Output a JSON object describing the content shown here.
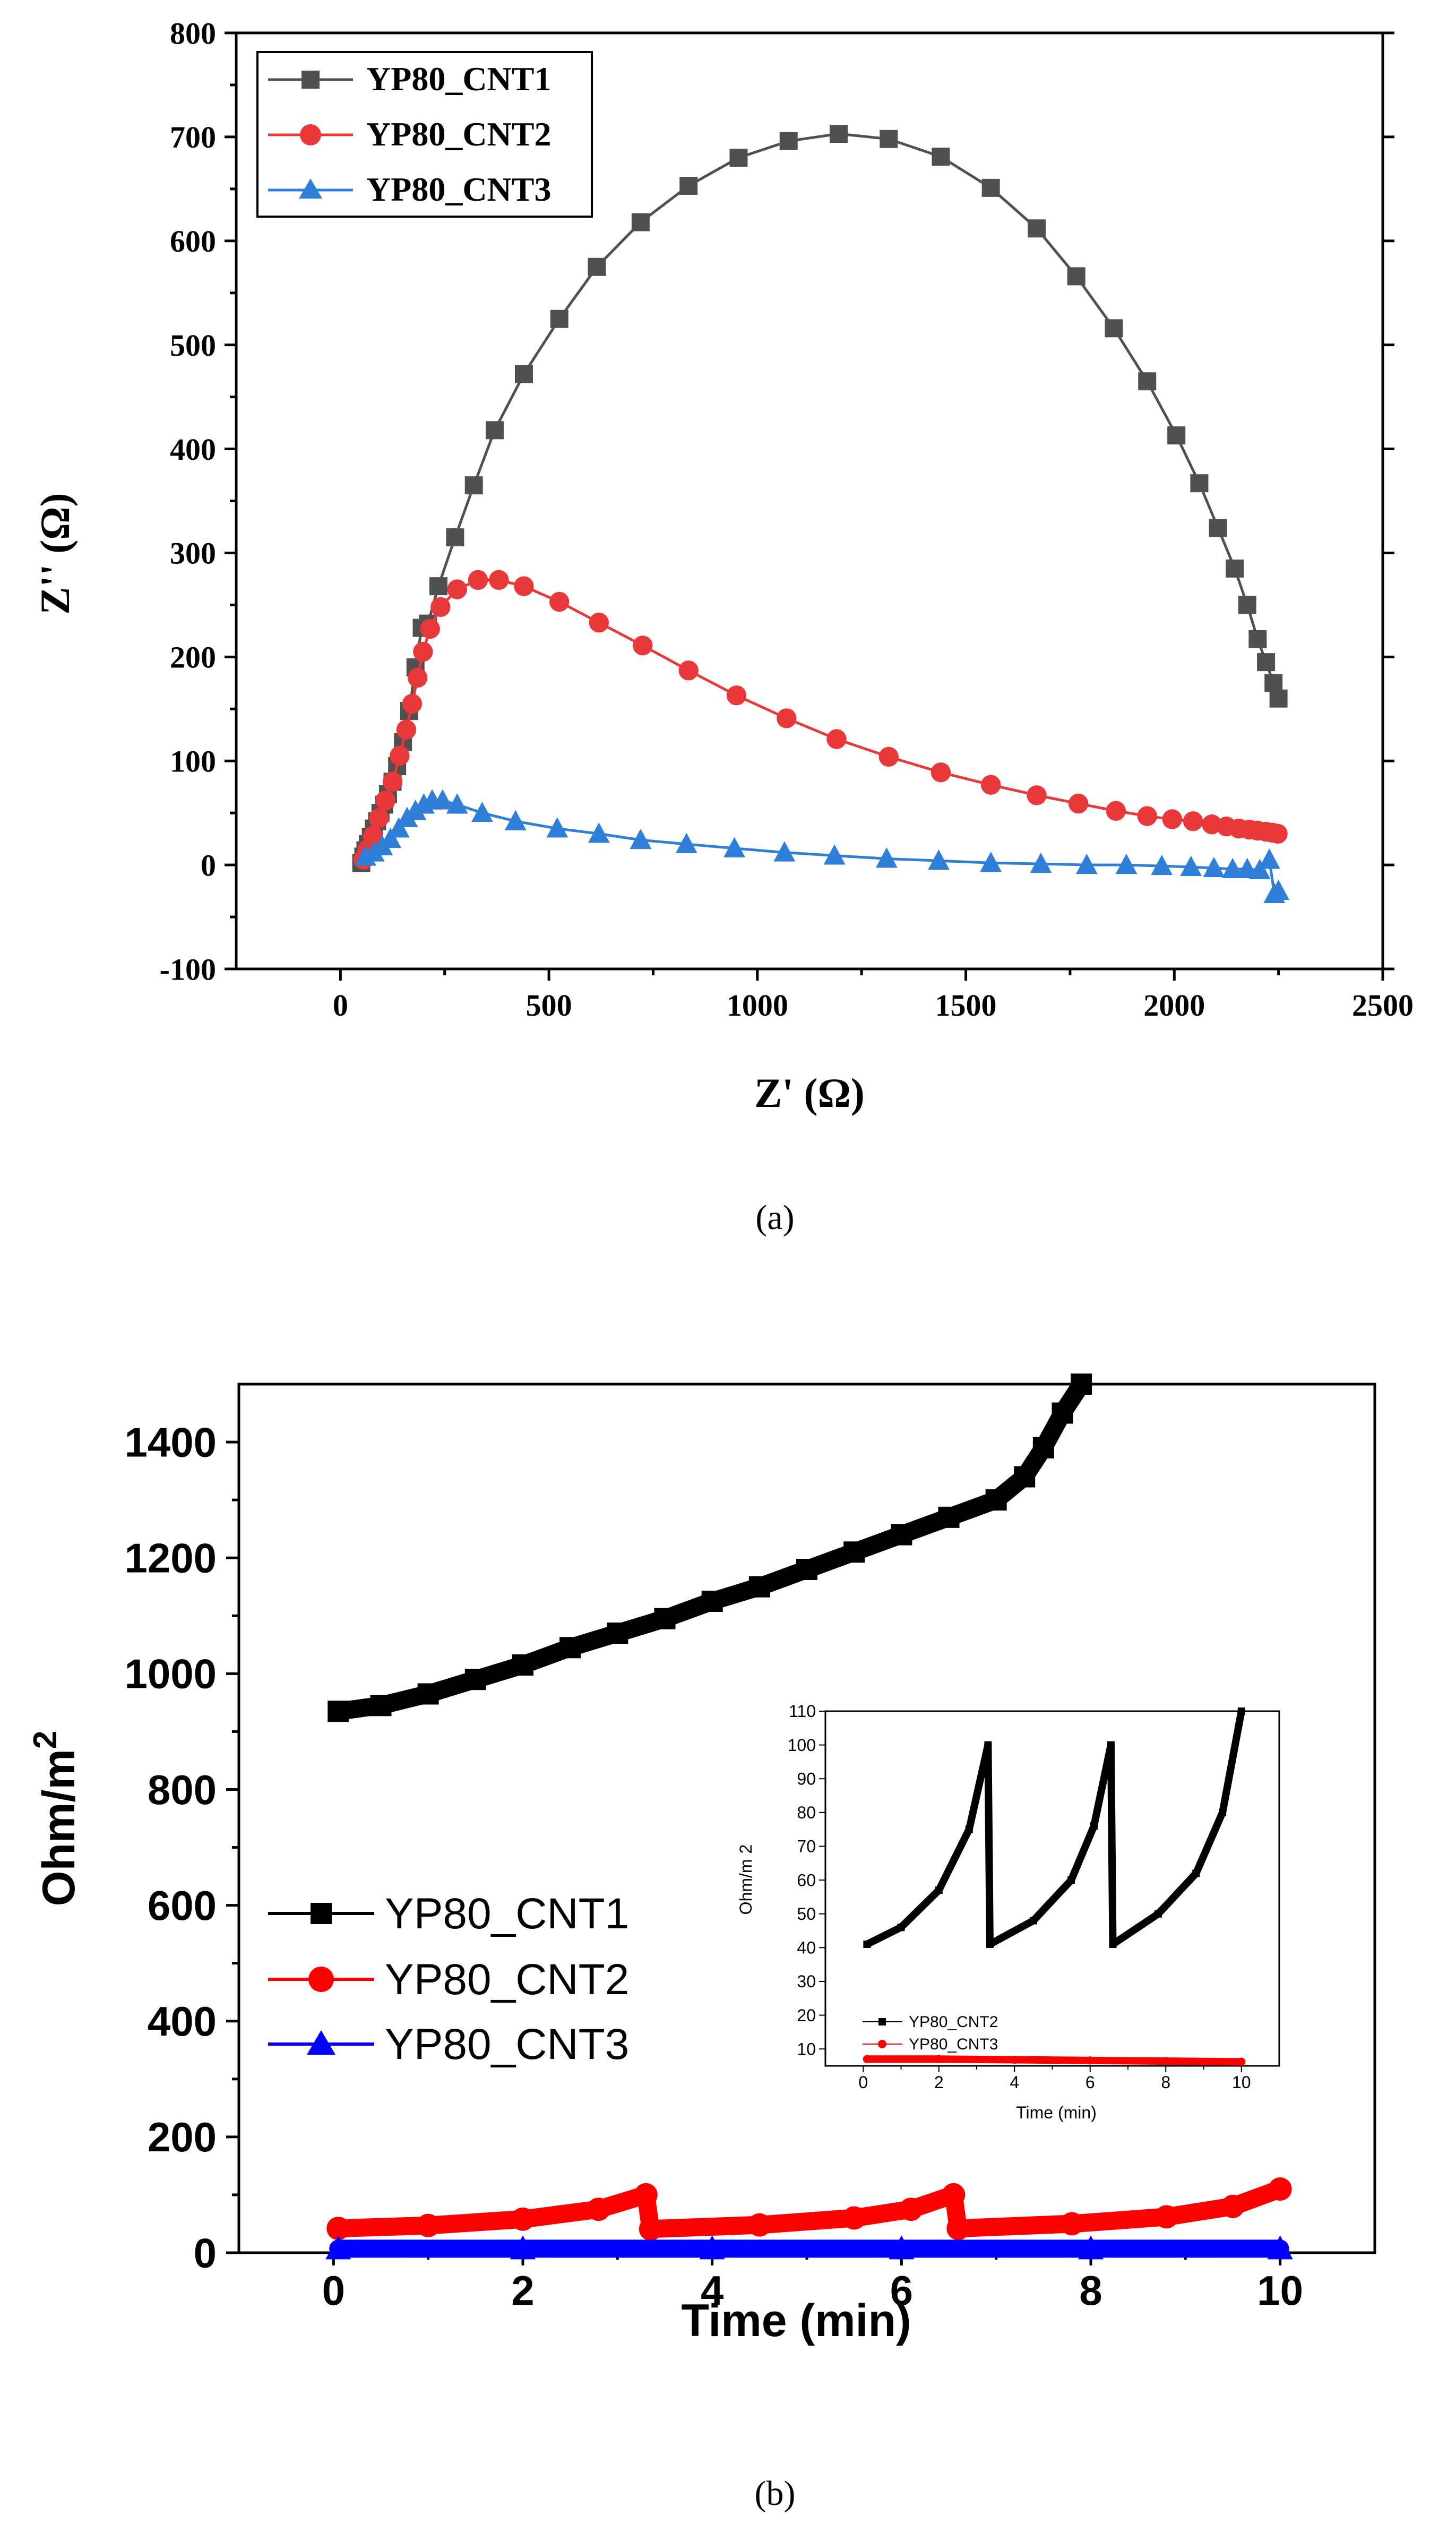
{
  "chart_data": [
    {
      "type": "line",
      "panel_label": "(a)",
      "title": "",
      "xlabel": "Z' (Ω)",
      "ylabel": "Z'' (Ω)",
      "xlim": [
        -250,
        2500
      ],
      "ylim": [
        -100,
        800
      ],
      "xticks": [
        0,
        500,
        1000,
        1500,
        2000,
        2500
      ],
      "yticks": [
        -100,
        0,
        100,
        200,
        300,
        400,
        500,
        600,
        700,
        800
      ],
      "legend_position": "top-left",
      "series": [
        {
          "name": "YP80_CNT1",
          "color": "#505050",
          "marker": "square",
          "x": [
            50,
            55,
            60,
            66,
            73,
            80,
            88,
            96,
            105,
            114,
            125,
            136,
            150,
            165,
            180,
            195,
            210,
            235,
            275,
            320,
            370,
            440,
            525,
            615,
            720,
            835,
            955,
            1075,
            1195,
            1315,
            1440,
            1560,
            1670,
            1765,
            1855,
            1935,
            2005,
            2060,
            2105,
            2145,
            2175,
            2200,
            2220,
            2238,
            2250
          ],
          "y": [
            2,
            8,
            14,
            20,
            27,
            35,
            42,
            50,
            58,
            68,
            80,
            95,
            118,
            148,
            190,
            228,
            232,
            268,
            315,
            365,
            418,
            472,
            525,
            575,
            618,
            653,
            680,
            696,
            703,
            698,
            681,
            651,
            612,
            566,
            516,
            465,
            413,
            367,
            324,
            285,
            250,
            217,
            195,
            175,
            160
          ]
        },
        {
          "name": "YP80_CNT2",
          "color": "#e8383a",
          "marker": "circle",
          "x": [
            55,
            65,
            78,
            92,
            108,
            125,
            142,
            158,
            172,
            185,
            198,
            215,
            240,
            280,
            330,
            380,
            440,
            525,
            620,
            725,
            835,
            950,
            1070,
            1190,
            1315,
            1440,
            1560,
            1670,
            1770,
            1860,
            1935,
            1995,
            2045,
            2090,
            2125,
            2155,
            2180,
            2200,
            2220,
            2235,
            2248
          ],
          "y": [
            5,
            15,
            28,
            45,
            62,
            80,
            105,
            130,
            155,
            180,
            205,
            227,
            248,
            265,
            274,
            274,
            268,
            253,
            233,
            211,
            187,
            163,
            141,
            121,
            104,
            89,
            77,
            67,
            59,
            52,
            47,
            44,
            42,
            39,
            37,
            35,
            34,
            33,
            32,
            31,
            30
          ]
        },
        {
          "name": "YP80_CNT3",
          "color": "#2f7ed8",
          "marker": "triangle",
          "x": [
            60,
            80,
            100,
            120,
            140,
            160,
            180,
            200,
            220,
            245,
            280,
            340,
            420,
            520,
            620,
            720,
            830,
            945,
            1065,
            1185,
            1310,
            1435,
            1560,
            1680,
            1790,
            1885,
            1970,
            2040,
            2095,
            2140,
            2175,
            2205,
            2228,
            2240,
            2250
          ],
          "y": [
            8,
            12,
            18,
            25,
            35,
            45,
            52,
            58,
            62,
            62,
            58,
            50,
            42,
            35,
            30,
            24,
            20,
            16,
            12,
            9,
            6,
            4,
            2,
            1,
            0,
            0,
            -1,
            -2,
            -3,
            -4,
            -4,
            -5,
            5,
            -28,
            -25
          ]
        }
      ]
    },
    {
      "type": "line",
      "panel_label": "(b)",
      "title": "",
      "xlabel": "Time (min)",
      "ylabel": "Ohm/m",
      "ylabel_superscript": "2",
      "xlim": [
        -1,
        11
      ],
      "ylim": [
        0,
        1500
      ],
      "xticks": [
        0,
        2,
        4,
        6,
        8,
        10
      ],
      "yticks": [
        0,
        200,
        400,
        600,
        800,
        1000,
        1200,
        1400
      ],
      "legend_position": "center-left",
      "series": [
        {
          "name": "YP80_CNT1",
          "color": "#000000",
          "marker": "square",
          "x": [
            0.05,
            0.5,
            1.0,
            1.5,
            2.0,
            2.5,
            3.0,
            3.5,
            4.0,
            4.5,
            5.0,
            5.5,
            6.0,
            6.5,
            7.0,
            7.3,
            7.5,
            7.7,
            7.9
          ],
          "y": [
            935,
            945,
            965,
            990,
            1015,
            1045,
            1070,
            1095,
            1125,
            1150,
            1180,
            1210,
            1240,
            1270,
            1300,
            1340,
            1390,
            1450,
            1500
          ]
        },
        {
          "name": "YP80_CNT2",
          "color": "#ff0000",
          "marker": "circle",
          "x": [
            0.05,
            1.0,
            2.0,
            2.8,
            3.3,
            3.35,
            4.5,
            5.5,
            6.1,
            6.55,
            6.6,
            7.8,
            8.8,
            9.5,
            10.0
          ],
          "y": [
            42,
            47,
            58,
            75,
            100,
            41,
            48,
            60,
            75,
            100,
            42,
            50,
            62,
            80,
            110
          ]
        },
        {
          "name": "YP80_CNT3",
          "color": "#0000ff",
          "marker": "triangle",
          "x": [
            0.05,
            2.0,
            4.0,
            6.0,
            8.0,
            10.0
          ],
          "y": [
            7,
            7,
            7,
            7,
            7,
            7
          ]
        }
      ]
    },
    {
      "type": "line",
      "panel_label": "",
      "title": "",
      "xlabel": "Time (min)",
      "ylabel": "Ohm/m",
      "ylabel_superscript": "2",
      "xlim": [
        -1,
        11
      ],
      "ylim": [
        5,
        110
      ],
      "xticks": [
        0,
        2,
        4,
        6,
        8,
        10
      ],
      "yticks": [
        10,
        20,
        30,
        40,
        50,
        60,
        70,
        80,
        90,
        100,
        110
      ],
      "legend_position": "bottom-left",
      "series": [
        {
          "name": "YP80_CNT2",
          "color": "#000000",
          "marker": "square",
          "x": [
            0.1,
            1.0,
            2.0,
            2.8,
            3.3,
            3.35,
            4.5,
            5.5,
            6.1,
            6.55,
            6.6,
            7.8,
            8.8,
            9.5,
            10.0
          ],
          "y": [
            41,
            46,
            57,
            75,
            100,
            41,
            48,
            60,
            76,
            100,
            41,
            50,
            62,
            80,
            110
          ]
        },
        {
          "name": "YP80_CNT3",
          "color": "#ff0000",
          "marker": "circle",
          "x": [
            0.1,
            2.0,
            4.0,
            6.0,
            8.0,
            10.0
          ],
          "y": [
            7,
            7,
            6.8,
            6.6,
            6.4,
            6.2
          ]
        }
      ]
    }
  ]
}
